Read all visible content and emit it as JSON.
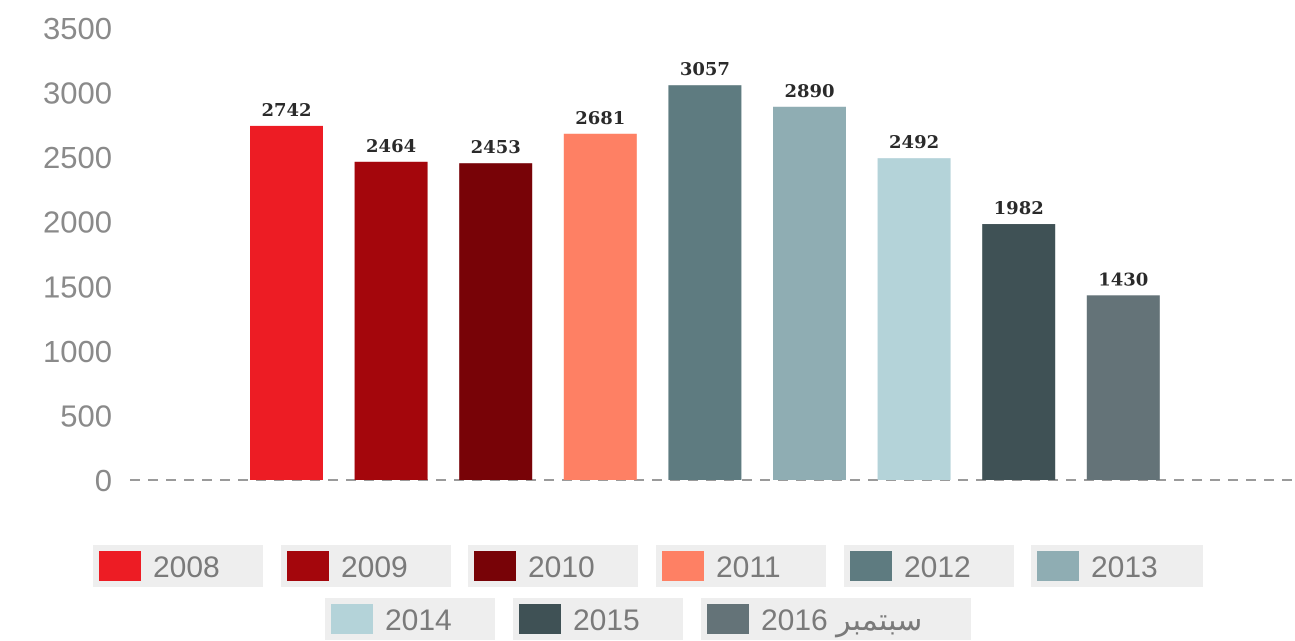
{
  "chart_data": {
    "type": "bar",
    "title": "",
    "xlabel": "",
    "ylabel": "",
    "ylim": [
      0,
      3500
    ],
    "yticks": [
      0,
      500,
      1000,
      1500,
      2000,
      2500,
      3000,
      3500
    ],
    "grid": false,
    "legend_position": "bottom",
    "categories": [
      "2008",
      "2009",
      "2010",
      "2011",
      "2012",
      "2013",
      "2014",
      "2015",
      "2016 سبتمبر"
    ],
    "values": [
      2742,
      2464,
      2453,
      2681,
      3057,
      2890,
      2492,
      1982,
      1430
    ],
    "colors": [
      "#ed1c24",
      "#a4060c",
      "#780307",
      "#fe8064",
      "#5e7b80",
      "#8fadb3",
      "#b4d3d9",
      "#3f5155",
      "#647378"
    ],
    "data_labels": [
      "2742",
      "2464",
      "2453",
      "2681",
      "3057",
      "2890",
      "2492",
      "1982",
      "1430"
    ],
    "legend": [
      "2008",
      "2009",
      "2010",
      "2011",
      "2012",
      "2013",
      "2014",
      "2015",
      "2016 سبتمبر"
    ]
  }
}
